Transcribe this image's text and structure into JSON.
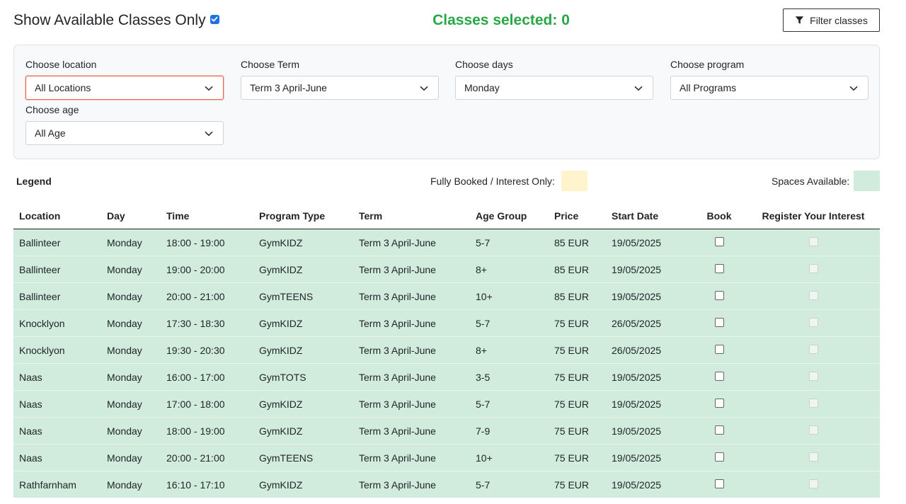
{
  "header": {
    "show_available_label": "Show Available Classes Only",
    "show_available_checked": true,
    "classes_selected": "Classes selected: 0",
    "filter_button_label": "Filter classes",
    "filter_icon": "filter-icon"
  },
  "filters": [
    {
      "label": "Choose location",
      "value": "All Locations",
      "name": "location"
    },
    {
      "label": "Choose Term",
      "value": "Term 3 April-June",
      "name": "term"
    },
    {
      "label": "Choose days",
      "value": "Monday",
      "name": "days"
    },
    {
      "label": "Choose program",
      "value": "All Programs",
      "name": "program"
    },
    {
      "label": "Choose age",
      "value": "All Age",
      "name": "age"
    }
  ],
  "legend": {
    "title": "Legend",
    "booked_label": "Fully Booked / Interest Only:",
    "booked_color": "#fff4cc",
    "available_label": "Spaces Available:",
    "available_color": "#d1ecdd"
  },
  "table": {
    "headers": [
      "Location",
      "Day",
      "Time",
      "Program Type",
      "Term",
      "Age Group",
      "Price",
      "Start Date",
      "Book",
      "Register Your Interest"
    ],
    "rows": [
      [
        "Ballinteer",
        "Monday",
        "18:00 - 19:00",
        "GymKIDZ",
        "Term 3 April-June",
        "5-7",
        "85 EUR",
        "19/05/2025"
      ],
      [
        "Ballinteer",
        "Monday",
        "19:00 - 20:00",
        "GymKIDZ",
        "Term 3 April-June",
        "8+",
        "85 EUR",
        "19/05/2025"
      ],
      [
        "Ballinteer",
        "Monday",
        "20:00 - 21:00",
        "GymTEENS",
        "Term 3 April-June",
        "10+",
        "85 EUR",
        "19/05/2025"
      ],
      [
        "Knocklyon",
        "Monday",
        "17:30 - 18:30",
        "GymKIDZ",
        "Term 3 April-June",
        "5-7",
        "75 EUR",
        "26/05/2025"
      ],
      [
        "Knocklyon",
        "Monday",
        "19:30 - 20:30",
        "GymKIDZ",
        "Term 3 April-June",
        "8+",
        "75 EUR",
        "26/05/2025"
      ],
      [
        "Naas",
        "Monday",
        "16:00 - 17:00",
        "GymTOTS",
        "Term 3 April-June",
        "3-5",
        "75 EUR",
        "19/05/2025"
      ],
      [
        "Naas",
        "Monday",
        "17:00 - 18:00",
        "GymKIDZ",
        "Term 3 April-June",
        "5-7",
        "75 EUR",
        "19/05/2025"
      ],
      [
        "Naas",
        "Monday",
        "18:00 - 19:00",
        "GymKIDZ",
        "Term 3 April-June",
        "7-9",
        "75 EUR",
        "19/05/2025"
      ],
      [
        "Naas",
        "Monday",
        "20:00 - 21:00",
        "GymTEENS",
        "Term 3 April-June",
        "10+",
        "75 EUR",
        "19/05/2025"
      ],
      [
        "Rathfarnham",
        "Monday",
        "16:10 - 17:10",
        "GymKIDZ",
        "Term 3 April-June",
        "5-7",
        "75 EUR",
        "19/05/2025"
      ]
    ]
  }
}
